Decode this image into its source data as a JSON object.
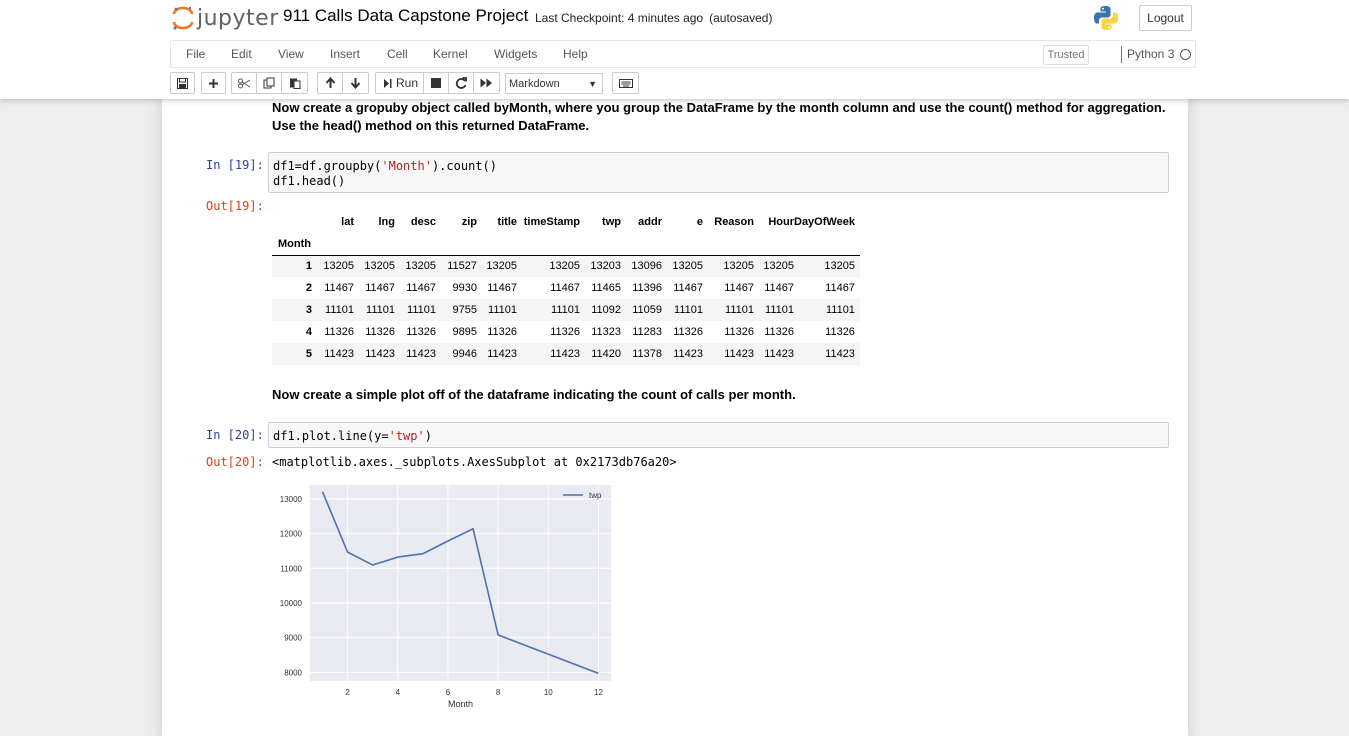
{
  "header": {
    "logo_text": "jupyter",
    "notebook_title": "911 Calls Data Capstone Project",
    "checkpoint": "Last Checkpoint: 4 minutes ago",
    "autosave": "(autosaved)",
    "logout_label": "Logout"
  },
  "menu": {
    "items": [
      "File",
      "Edit",
      "View",
      "Insert",
      "Cell",
      "Kernel",
      "Widgets",
      "Help"
    ],
    "trusted_label": "Trusted",
    "kernel_name": "Python 3"
  },
  "toolbar": {
    "run_label": "Run",
    "cell_type": "Markdown",
    "icons": [
      "save-icon",
      "plus-icon",
      "cut-icon",
      "copy-icon",
      "paste-icon",
      "arrow-up-icon",
      "arrow-down-icon",
      "run-icon",
      "stop-icon",
      "restart-icon",
      "fast-forward-icon",
      "keyboard-icon"
    ]
  },
  "cells": {
    "md1": {
      "line1": "Now create a gropuby object called byMonth, where you group the DataFrame by the month column and use the count() method for aggregation.",
      "line2": "Use the head() method on this returned DataFrame."
    },
    "in19": {
      "prompt": "In [19]:",
      "line1_a": "df1=df.groupby(",
      "line1_str": "'Month'",
      "line1_b": ").count()",
      "line2": "df1.head()"
    },
    "out19": {
      "prompt": "Out[19]:",
      "index_name": "Month",
      "columns": [
        "lat",
        "lng",
        "desc",
        "zip",
        "title",
        "timeStamp",
        "twp",
        "addr",
        "e",
        "Reason",
        "Hour",
        "DayOfWeek"
      ],
      "rows": [
        {
          "index": "1",
          "values": [
            "13205",
            "13205",
            "13205",
            "11527",
            "13205",
            "13205",
            "13203",
            "13096",
            "13205",
            "13205",
            "13205",
            "13205"
          ]
        },
        {
          "index": "2",
          "values": [
            "11467",
            "11467",
            "11467",
            "9930",
            "11467",
            "11467",
            "11465",
            "11396",
            "11467",
            "11467",
            "11467",
            "11467"
          ]
        },
        {
          "index": "3",
          "values": [
            "11101",
            "11101",
            "11101",
            "9755",
            "11101",
            "11101",
            "11092",
            "11059",
            "11101",
            "11101",
            "11101",
            "11101"
          ]
        },
        {
          "index": "4",
          "values": [
            "11326",
            "11326",
            "11326",
            "9895",
            "11326",
            "11326",
            "11323",
            "11283",
            "11326",
            "11326",
            "11326",
            "11326"
          ]
        },
        {
          "index": "5",
          "values": [
            "11423",
            "11423",
            "11423",
            "9946",
            "11423",
            "11423",
            "11420",
            "11378",
            "11423",
            "11423",
            "11423",
            "11423"
          ]
        }
      ]
    },
    "md2": {
      "text": "Now create a simple plot off of the dataframe indicating the count of calls per month."
    },
    "in20": {
      "prompt": "In [20]:",
      "code_a": "df1.plot.line(y=",
      "code_str": "'twp'",
      "code_b": ")"
    },
    "out20": {
      "prompt": "Out[20]:",
      "repr": "<matplotlib.axes._subplots.AxesSubplot at 0x2173db76a20>"
    }
  },
  "chart_data": {
    "type": "line",
    "xlabel": "Month",
    "ylabel": "",
    "x": [
      1,
      2,
      3,
      4,
      5,
      6,
      7,
      8,
      12
    ],
    "series": [
      {
        "name": "twp",
        "values": [
          13203,
          11465,
          11092,
          11323,
          11420,
          11786,
          12137,
          9078,
          7969
        ],
        "color": "#4c72b0"
      }
    ],
    "xlim": [
      0.5,
      12.5
    ],
    "ylim": [
      7750,
      13400
    ],
    "xticks": [
      2,
      4,
      6,
      8,
      10,
      12
    ],
    "yticks": [
      8000,
      9000,
      10000,
      11000,
      12000,
      13000
    ],
    "grid": true,
    "legend": "top-right",
    "background": "#eaeaf2"
  }
}
